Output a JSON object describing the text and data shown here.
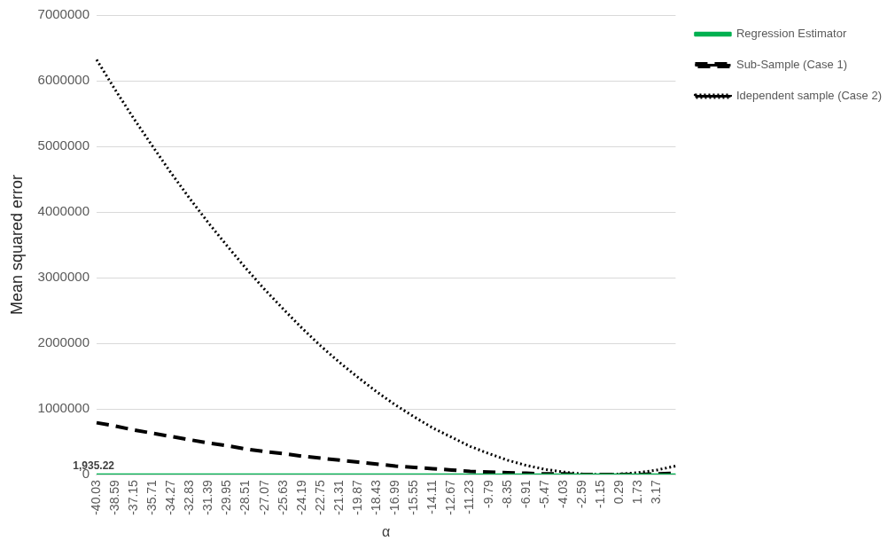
{
  "chart_data": {
    "type": "line",
    "xlabel": "α",
    "ylabel": "Mean squared error",
    "categories": [
      "-40.03",
      "-38.59",
      "-37.15",
      "-35.71",
      "-34.27",
      "-32.83",
      "-31.39",
      "-29.95",
      "-28.51",
      "-27.07",
      "-25.63",
      "-24.19",
      "-22.75",
      "-21.31",
      "-19.87",
      "-18.43",
      "-16.99",
      "-15.55",
      "-14.11",
      "-12.67",
      "-11.23",
      "-9.79",
      "-8.35",
      "-6.91",
      "-5.47",
      "-4.03",
      "-2.59",
      "-1.15",
      "0.29",
      "1.73",
      "3.17",
      null
    ],
    "series": [
      {
        "name": "Regression Estimator",
        "color": "#00b050",
        "line_style": "solid",
        "values": [
          1935.22,
          1935.22,
          1935.22,
          1935.22,
          1935.22,
          1935.22,
          1935.22,
          1935.22,
          1935.22,
          1935.22,
          1935.22,
          1935.22,
          1935.22,
          1935.22,
          1935.22,
          1935.22,
          1935.22,
          1935.22,
          1935.22,
          1935.22,
          1935.22,
          1935.22,
          1935.22,
          1935.22,
          1935.22,
          1935.22,
          1935.22,
          1935.22,
          1935.22,
          1935.22,
          1935.22,
          1935.22
        ],
        "value_labels": [
          "1,935.22",
          null,
          null,
          null,
          null,
          null,
          null,
          null,
          null,
          null,
          null,
          null,
          null,
          null,
          null,
          null,
          null,
          null,
          null,
          null,
          null,
          null,
          null,
          null,
          null,
          null,
          null,
          null,
          null,
          null,
          null,
          null
        ]
      },
      {
        "name": "Sub-Sample (Case 1)",
        "color": "#000000",
        "line_style": "dashed",
        "values": [
          790000,
          740000,
          680000,
          630000,
          580000,
          530000,
          480000,
          440000,
          390000,
          350000,
          320000,
          280000,
          250000,
          220000,
          190000,
          160000,
          130000,
          110000,
          90000,
          70000,
          50000,
          40000,
          30000,
          20000,
          10000,
          10000,
          0,
          0,
          0,
          0,
          10000,
          20000
        ]
      },
      {
        "name": "Idependent sample (Case 2)",
        "color": "#000000",
        "line_style": "dotted",
        "values": [
          6320000,
          5860000,
          5420000,
          5000000,
          4590000,
          4200000,
          3830000,
          3480000,
          3140000,
          2820000,
          2520000,
          2230000,
          1960000,
          1710000,
          1480000,
          1260000,
          1060000,
          880000,
          710000,
          570000,
          430000,
          320000,
          220000,
          140000,
          80000,
          40000,
          10000,
          0,
          10000,
          30000,
          70000,
          130000
        ]
      }
    ],
    "ylim": [
      0,
      7000000
    ],
    "yticks": [
      0,
      1000000,
      2000000,
      3000000,
      4000000,
      5000000,
      6000000,
      7000000
    ],
    "grid": "y",
    "legend": "top right",
    "marker": "none"
  }
}
